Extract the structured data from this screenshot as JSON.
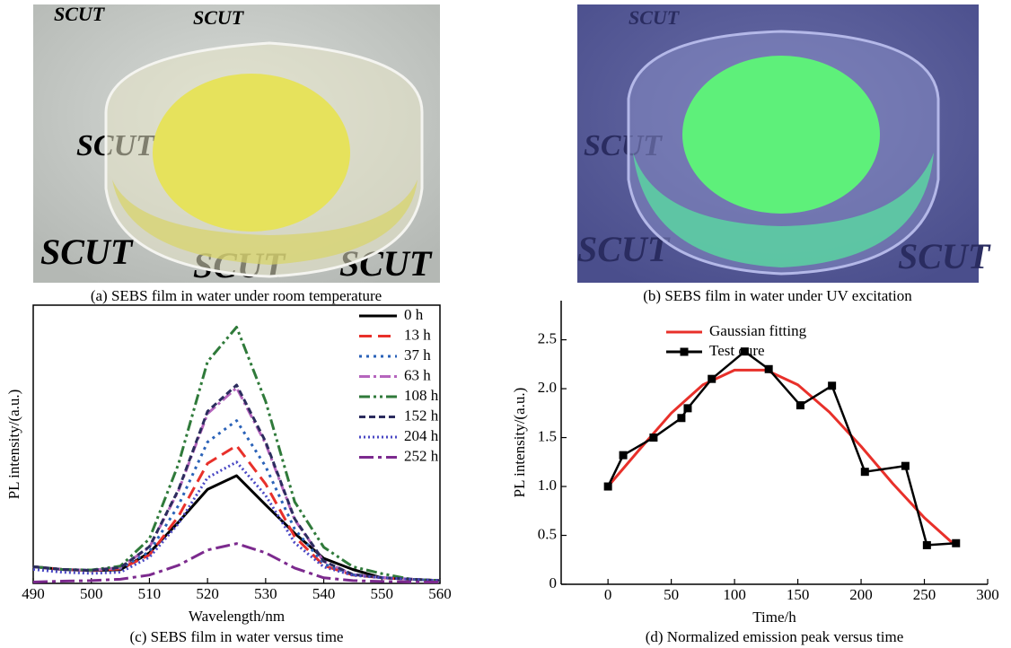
{
  "photos": [
    {
      "caption": "(a) SEBS film in water under room temperature",
      "watermark": "SCUT"
    },
    {
      "caption": "(b) SEBS film in water under UV excitation",
      "watermark": "SCUT"
    }
  ],
  "chart_data": [
    {
      "type": "line",
      "caption": "(c) SEBS film in water versus time",
      "x_label": "Wavelength/nm",
      "y_label": "PL intensity/(a.u.)",
      "x": [
        490,
        495,
        500,
        505,
        510,
        515,
        520,
        525,
        530,
        535,
        540,
        545,
        550,
        555,
        560
      ],
      "xlim": [
        490,
        560
      ],
      "xticks": [
        490,
        500,
        510,
        520,
        530,
        540,
        550,
        560
      ],
      "ylim": [
        0,
        100
      ],
      "yticks": [],
      "legend": "upper-right",
      "series": [
        {
          "name": "0 h",
          "color": "#000000",
          "dash": "",
          "values": [
            6,
            5,
            4.6,
            4.9,
            11,
            22,
            33.8,
            38.7,
            28.2,
            18,
            9,
            5,
            2,
            1.5,
            1
          ]
        },
        {
          "name": "13 h",
          "color": "#e8302a",
          "dash": "14,7",
          "values": [
            6,
            5,
            4.6,
            5.2,
            10.2,
            24.1,
            43.1,
            49.5,
            35.7,
            16.8,
            6.4,
            3,
            2,
            1.5,
            1
          ]
        },
        {
          "name": "37 h",
          "color": "#2a62b8",
          "dash": "3,5",
          "values": [
            6,
            5,
            4.7,
            5.4,
            11.4,
            28,
            50.8,
            58.5,
            42,
            19.5,
            7,
            3.1,
            2.1,
            1.5,
            1
          ]
        },
        {
          "name": "63 h",
          "color": "#b565bd",
          "dash": "12,4,3,4",
          "values": [
            6,
            5,
            4.7,
            5.7,
            13,
            33.3,
            61,
            70.3,
            50.2,
            22.9,
            7.9,
            3.2,
            2.1,
            1.5,
            1
          ]
        },
        {
          "name": "108 h",
          "color": "#2f7a3a",
          "dash": "12,4,3,4,3,4",
          "values": [
            6,
            5,
            4.8,
            6.2,
            16,
            42.9,
            79.7,
            92.1,
            65.4,
            29.3,
            13,
            6,
            3.5,
            1.5,
            1
          ]
        },
        {
          "name": "152 h",
          "color": "#2c2c5e",
          "dash": "7,4",
          "values": [
            6,
            5,
            4.7,
            5.7,
            13.2,
            33.7,
            61.8,
            71.3,
            50.9,
            23.2,
            8,
            3.2,
            2.1,
            1.5,
            1
          ]
        },
        {
          "name": "204 h",
          "color": "#4a48c4",
          "dash": "2,3",
          "values": [
            5,
            4,
            3.6,
            4,
            9.4,
            21.5,
            38,
            43.6,
            31.6,
            14.6,
            5.9,
            2.9,
            2,
            1.5,
            1
          ]
        },
        {
          "name": "252 h",
          "color": "#7c2a8e",
          "dash": "16,5,4,5",
          "values": [
            0.5,
            0.8,
            1,
            1.5,
            3,
            6.5,
            12,
            14.3,
            11,
            5.5,
            2,
            1,
            0.7,
            0.5,
            0.5
          ]
        }
      ]
    },
    {
      "type": "line",
      "caption": "(d) Normalized emission peak versus time",
      "x_label": "Time/h",
      "y_label": "PL intensity/(a.u.)",
      "xlim": [
        -37,
        300
      ],
      "xticks": [
        0,
        50,
        100,
        150,
        200,
        250,
        300
      ],
      "ylim": [
        0,
        2.9
      ],
      "yticks": [
        0,
        0.5,
        {
          "value": 1,
          "label": "1.0"
        },
        1.5,
        {
          "value": 2,
          "label": "2.0"
        },
        2.5
      ],
      "legend": "upper-right",
      "series": [
        {
          "name": "Gaussian fitting",
          "color": "#e8302a",
          "x": [
            0,
            25,
            50,
            75,
            100,
            125,
            150,
            175,
            200,
            225,
            250,
            275
          ],
          "values": [
            1.0,
            1.38,
            1.75,
            2.04,
            2.19,
            2.19,
            2.04,
            1.76,
            1.41,
            1.03,
            0.68,
            0.39
          ]
        },
        {
          "name": "Test cure",
          "color": "#000000",
          "marker": "square",
          "x": [
            0,
            12,
            36,
            58,
            63,
            82,
            108,
            127,
            152,
            177,
            203,
            235,
            252,
            275
          ],
          "values": [
            1.0,
            1.32,
            1.5,
            1.7,
            1.8,
            2.1,
            2.38,
            2.2,
            1.83,
            2.03,
            1.15,
            1.21,
            0.4,
            0.42
          ]
        }
      ]
    }
  ]
}
